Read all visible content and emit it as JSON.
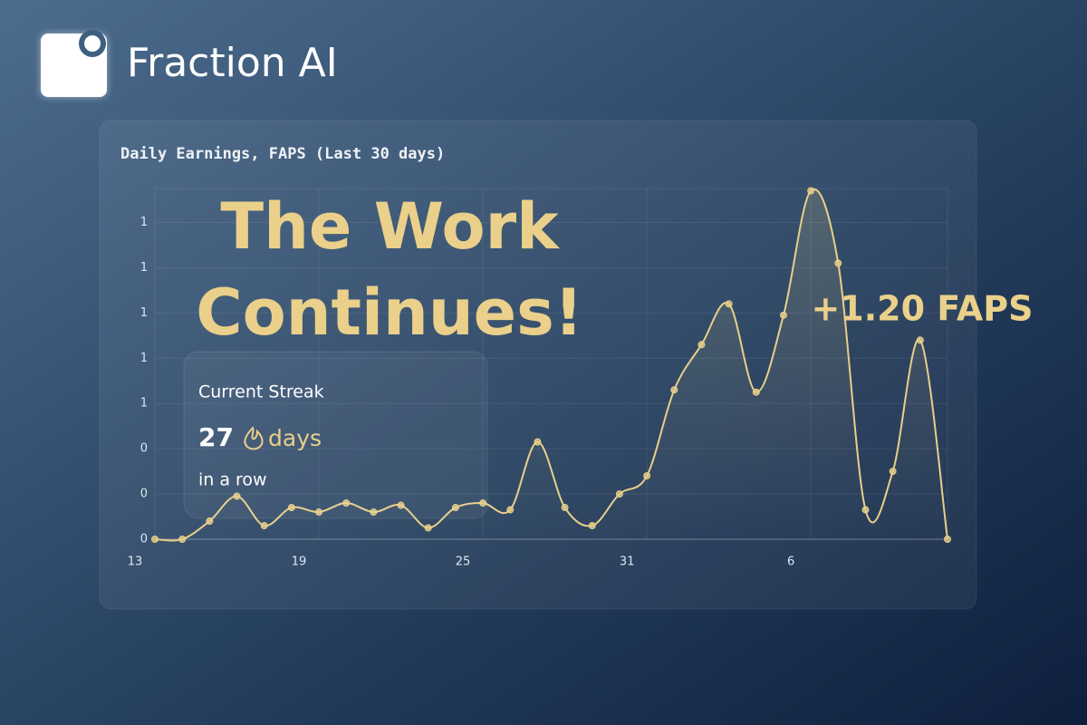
{
  "brand": {
    "name": "Fraction AI"
  },
  "headline": {
    "lines": [
      "The Work",
      "Continues!"
    ],
    "earnings": "+1.20 FAPS"
  },
  "streak": {
    "title": "Current Streak",
    "count": "27",
    "unit": "days",
    "note": "in a row"
  },
  "chart_data": {
    "type": "line",
    "title": "Daily Earnings, FAPS (Last 30 days)",
    "categories": [
      "13",
      null,
      null,
      null,
      null,
      null,
      "19",
      null,
      null,
      null,
      null,
      null,
      "25",
      null,
      null,
      null,
      null,
      null,
      "31",
      null,
      null,
      null,
      null,
      null,
      "6",
      null,
      null,
      null,
      null,
      null
    ],
    "series": [
      {
        "name": "Daily Earnings",
        "color": "#e8cf8a",
        "values": [
          0,
          0,
          0.08,
          0.19,
          0.06,
          0.14,
          0.12,
          0.16,
          0.12,
          0.15,
          0.05,
          0.14,
          0.16,
          0.13,
          0.43,
          0.14,
          0.06,
          0.2,
          0.28,
          0.66,
          0.86,
          1.04,
          0.65,
          0.99,
          1.54,
          1.22,
          0.13,
          0.3,
          0.88,
          0
        ]
      }
    ],
    "ylim": [
      0,
      1.55
    ],
    "yticks": [
      0,
      {
        "value": 0.2,
        "label": "0"
      },
      {
        "value": 0.4,
        "label": "0"
      },
      {
        "value": 0.6,
        "label": "1"
      },
      {
        "value": 0.8,
        "label": "1"
      },
      {
        "value": 1.0,
        "label": "1"
      },
      {
        "value": 1.2,
        "label": "1"
      },
      {
        "value": 1.4,
        "label": "1"
      }
    ],
    "grid": true
  }
}
